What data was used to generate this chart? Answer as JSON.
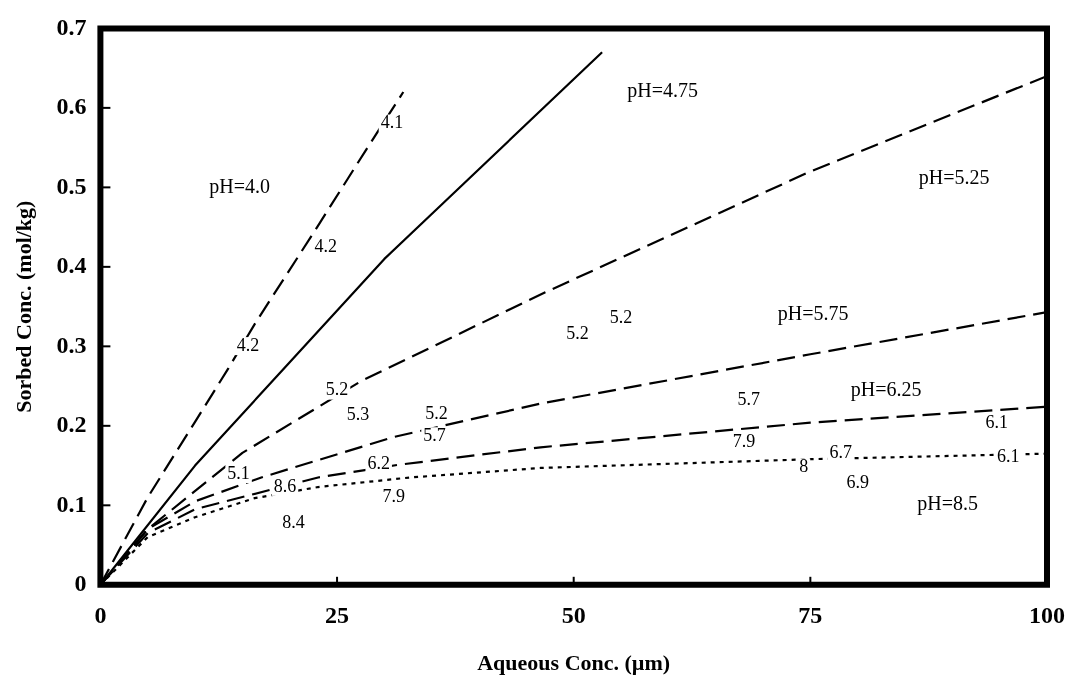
{
  "chart_data": {
    "type": "line",
    "xlabel": "Aqueous Conc. (µm)",
    "ylabel": "Sorbed Conc. (mol/kg)",
    "xlim": [
      0,
      100
    ],
    "xticks": [
      0,
      25,
      50,
      75,
      100
    ],
    "ylim": [
      0,
      0.7
    ],
    "yticks": [
      0,
      0.1,
      0.2,
      0.3,
      0.4,
      0.5,
      0.6,
      0.7
    ],
    "grid": false,
    "legend": false,
    "marker": "none",
    "series": [
      {
        "name": "pH=4.0",
        "color": "#000000",
        "line_style": "dashed",
        "x": [
          0,
          5,
          10,
          13.5,
          16.3,
          22.9,
          28,
          32
        ],
        "values": [
          0,
          0.11,
          0.205,
          0.272,
          0.328,
          0.45,
          0.546,
          0.62
        ]
      },
      {
        "name": "pH=4.75",
        "color": "#000000",
        "line_style": "solid",
        "x": [
          0,
          10,
          20,
          30,
          36.2,
          53
        ],
        "values": [
          0,
          0.15,
          0.28,
          0.41,
          0.48,
          0.67
        ]
      },
      {
        "name": "pH=5.25",
        "color": "#000000",
        "line_style": "dashed",
        "x": [
          0,
          5,
          15,
          27.5,
          47,
          75,
          100
        ],
        "values": [
          0,
          0.07,
          0.166,
          0.256,
          0.368,
          0.52,
          0.64
        ]
      },
      {
        "name": "pH=5.75",
        "color": "#000000",
        "line_style": "dashed",
        "x": [
          0,
          5,
          10,
          17,
          31,
          46.5,
          75,
          100
        ],
        "values": [
          0,
          0.07,
          0.105,
          0.135,
          0.186,
          0.228,
          0.29,
          0.343
        ]
      },
      {
        "name": "pH=6.25",
        "color": "#000000",
        "line_style": "dashed",
        "x": [
          0,
          5,
          10,
          23,
          31.5,
          46.5,
          75,
          100
        ],
        "values": [
          0,
          0.065,
          0.095,
          0.135,
          0.151,
          0.173,
          0.204,
          0.224
        ]
      },
      {
        "name": "pH=8.5",
        "color": "#000000",
        "line_style": "dotted",
        "x": [
          0,
          5,
          10,
          16.3,
          23,
          32.7,
          46.5,
          75,
          100
        ],
        "values": [
          0,
          0.06,
          0.085,
          0.109,
          0.123,
          0.135,
          0.147,
          0.158,
          0.165
        ]
      }
    ],
    "annotations": [
      "4.1",
      "4.2",
      "4.2",
      "5.2",
      "5.3",
      "5.2",
      "5.7",
      "5.1",
      "8.6",
      "6.2",
      "7.9",
      "8.4",
      "5.2",
      "5.2",
      "5.7",
      "7.9",
      "6.7",
      "8",
      "6.9",
      "6.1",
      "6.1"
    ]
  }
}
